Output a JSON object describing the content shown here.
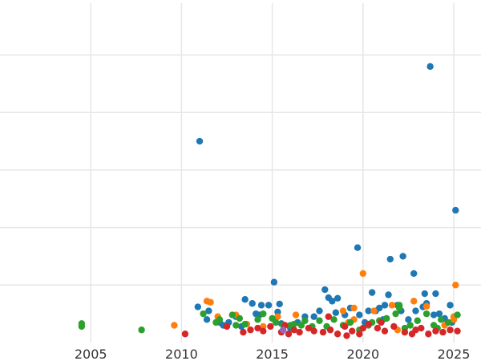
{
  "chart_data": {
    "type": "scatter",
    "title": "",
    "xlabel": "",
    "ylabel": "",
    "x_ticks": [
      "2005",
      "2010",
      "2015",
      "2020",
      "2025"
    ],
    "xlim": [
      2000.0,
      2026.5
    ],
    "ylim": [
      0,
      5.9
    ],
    "grid": true,
    "legend": "none",
    "series": [
      {
        "color": "#1f77b4",
        "points": [
          [
            2010.9,
            0.62
          ],
          [
            2011.0,
            3.5
          ],
          [
            2011.4,
            0.4
          ],
          [
            2011.5,
            0.55
          ],
          [
            2012.1,
            0.35
          ],
          [
            2012.3,
            0.3
          ],
          [
            2012.6,
            0.35
          ],
          [
            2013.0,
            0.45
          ],
          [
            2013.3,
            0.28
          ],
          [
            2013.5,
            0.75
          ],
          [
            2013.9,
            0.68
          ],
          [
            2014.1,
            0.5
          ],
          [
            2014.3,
            0.48
          ],
          [
            2014.4,
            0.65
          ],
          [
            2014.8,
            0.65
          ],
          [
            2015.1,
            1.05
          ],
          [
            2015.3,
            0.53
          ],
          [
            2015.4,
            0.67
          ],
          [
            2015.5,
            0.33
          ],
          [
            2016.0,
            0.25
          ],
          [
            2016.4,
            0.35
          ],
          [
            2016.8,
            0.45
          ],
          [
            2017.3,
            0.45
          ],
          [
            2017.6,
            0.55
          ],
          [
            2017.9,
            0.92
          ],
          [
            2018.1,
            0.78
          ],
          [
            2018.3,
            0.72
          ],
          [
            2018.6,
            0.77
          ],
          [
            2018.5,
            0.52
          ],
          [
            2019.0,
            0.48
          ],
          [
            2019.3,
            0.6
          ],
          [
            2019.7,
            1.65
          ],
          [
            2019.8,
            0.48
          ],
          [
            2020.1,
            0.35
          ],
          [
            2020.3,
            0.55
          ],
          [
            2020.5,
            0.87
          ],
          [
            2020.7,
            0.55
          ],
          [
            2020.9,
            0.6
          ],
          [
            2021.1,
            0.4
          ],
          [
            2021.4,
            0.83
          ],
          [
            2021.5,
            1.45
          ],
          [
            2021.9,
            0.65
          ],
          [
            2022.1,
            0.55
          ],
          [
            2022.2,
            1.5
          ],
          [
            2022.5,
            0.4
          ],
          [
            2022.8,
            1.2
          ],
          [
            2022.9,
            0.55
          ],
          [
            2023.3,
            0.62
          ],
          [
            2023.4,
            0.85
          ],
          [
            2023.5,
            0.68
          ],
          [
            2023.7,
            4.8
          ],
          [
            2024.0,
            0.85
          ],
          [
            2024.2,
            0.5
          ],
          [
            2024.5,
            0.42
          ],
          [
            2024.8,
            0.65
          ],
          [
            2025.1,
            2.3
          ],
          [
            2024.9,
            0.35
          ],
          [
            2023.9,
            0.48
          ],
          [
            2021.2,
            0.65
          ]
        ]
      },
      {
        "color": "#ff7f0e",
        "points": [
          [
            2009.6,
            0.3
          ],
          [
            2011.4,
            0.72
          ],
          [
            2011.6,
            0.7
          ],
          [
            2012.0,
            0.45
          ],
          [
            2013.0,
            0.48
          ],
          [
            2013.6,
            0.32
          ],
          [
            2014.5,
            0.28
          ],
          [
            2015.3,
            0.45
          ],
          [
            2016.3,
            0.48
          ],
          [
            2018.9,
            0.55
          ],
          [
            2019.5,
            0.6
          ],
          [
            2019.5,
            0.4
          ],
          [
            2020.0,
            1.2
          ],
          [
            2020.6,
            0.55
          ],
          [
            2021.6,
            0.65
          ],
          [
            2021.9,
            0.22
          ],
          [
            2022.8,
            0.72
          ],
          [
            2023.5,
            0.63
          ],
          [
            2024.5,
            0.3
          ],
          [
            2025.0,
            0.45
          ],
          [
            2025.1,
            1.0
          ],
          [
            2025.0,
            0.4
          ],
          [
            2019.2,
            0.35
          ]
        ]
      },
      {
        "color": "#2ca02c",
        "points": [
          [
            2004.5,
            0.28
          ],
          [
            2004.5,
            0.33
          ],
          [
            2007.8,
            0.22
          ],
          [
            2011.2,
            0.5
          ],
          [
            2011.9,
            0.35
          ],
          [
            2012.1,
            0.4
          ],
          [
            2012.8,
            0.48
          ],
          [
            2013.0,
            0.3
          ],
          [
            2013.2,
            0.42
          ],
          [
            2013.5,
            0.32
          ],
          [
            2014.2,
            0.4
          ],
          [
            2014.5,
            0.5
          ],
          [
            2015.0,
            0.42
          ],
          [
            2015.2,
            0.35
          ],
          [
            2015.6,
            0.3
          ],
          [
            2016.0,
            0.3
          ],
          [
            2016.2,
            0.32
          ],
          [
            2016.6,
            0.3
          ],
          [
            2016.8,
            0.38
          ],
          [
            2017.2,
            0.28
          ],
          [
            2017.6,
            0.38
          ],
          [
            2018.0,
            0.28
          ],
          [
            2018.4,
            0.4
          ],
          [
            2018.9,
            0.3
          ],
          [
            2019.3,
            0.35
          ],
          [
            2019.8,
            0.22
          ],
          [
            2020.3,
            0.3
          ],
          [
            2020.5,
            0.35
          ],
          [
            2020.9,
            0.38
          ],
          [
            2021.3,
            0.42
          ],
          [
            2021.8,
            0.5
          ],
          [
            2022.0,
            0.6
          ],
          [
            2022.3,
            0.25
          ],
          [
            2022.6,
            0.3
          ],
          [
            2023.0,
            0.38
          ],
          [
            2023.5,
            0.5
          ],
          [
            2023.9,
            0.3
          ],
          [
            2024.3,
            0.4
          ],
          [
            2024.7,
            0.35
          ],
          [
            2025.2,
            0.48
          ],
          [
            2022.0,
            0.65
          ],
          [
            2024.1,
            0.25
          ]
        ]
      },
      {
        "color": "#d62728",
        "points": [
          [
            2010.2,
            0.15
          ],
          [
            2012.5,
            0.28
          ],
          [
            2013.4,
            0.18
          ],
          [
            2013.8,
            0.22
          ],
          [
            2014.2,
            0.25
          ],
          [
            2014.5,
            0.2
          ],
          [
            2014.9,
            0.28
          ],
          [
            2015.5,
            0.18
          ],
          [
            2015.9,
            0.15
          ],
          [
            2016.2,
            0.22
          ],
          [
            2016.5,
            0.18
          ],
          [
            2017.0,
            0.25
          ],
          [
            2017.3,
            0.2
          ],
          [
            2017.8,
            0.18
          ],
          [
            2018.2,
            0.22
          ],
          [
            2018.1,
            0.45
          ],
          [
            2018.6,
            0.15
          ],
          [
            2019.0,
            0.28
          ],
          [
            2019.4,
            0.2
          ],
          [
            2019.8,
            0.15
          ],
          [
            2020.0,
            0.25
          ],
          [
            2020.3,
            0.32
          ],
          [
            2020.8,
            0.25
          ],
          [
            2021.2,
            0.2
          ],
          [
            2021.7,
            0.28
          ],
          [
            2022.3,
            0.18
          ],
          [
            2022.7,
            0.15
          ],
          [
            2022.9,
            0.22
          ],
          [
            2023.2,
            0.25
          ],
          [
            2023.6,
            0.15
          ],
          [
            2024.0,
            0.2
          ],
          [
            2024.4,
            0.18
          ],
          [
            2024.8,
            0.22
          ],
          [
            2025.2,
            0.2
          ],
          [
            2019.1,
            0.12
          ],
          [
            2015.7,
            0.3
          ],
          [
            2021.0,
            0.35
          ]
        ]
      },
      {
        "color": "#9467bd",
        "points": [
          [
            2015.6,
            0.22
          ]
        ]
      }
    ]
  }
}
